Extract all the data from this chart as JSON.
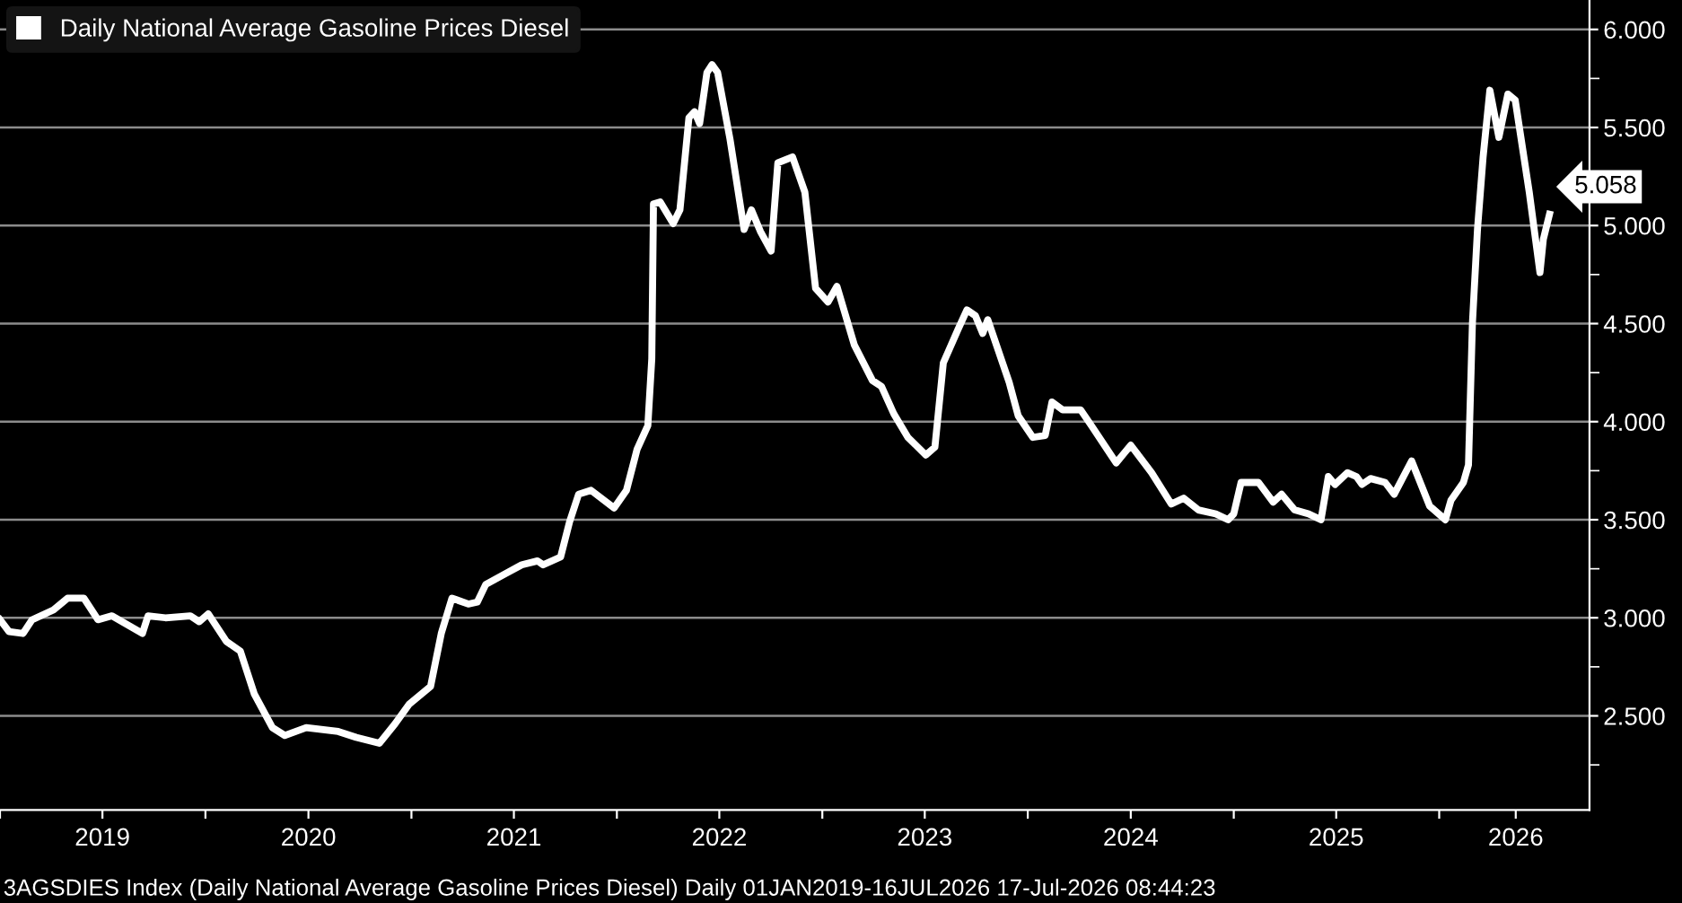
{
  "chart_data": {
    "type": "line",
    "series": [
      {
        "name": "Daily National Average Gasoline Prices Diesel",
        "color": "#ffffff",
        "x": [
          "2019-01-01",
          "2019-01-17",
          "2019-02-11",
          "2019-02-27",
          "2019-04-06",
          "2019-05-01",
          "2019-05-30",
          "2019-06-24",
          "2019-07-19",
          "2019-09-11",
          "2019-09-21",
          "2019-10-22",
          "2019-12-05",
          "2019-12-21",
          "2020-01-06",
          "2020-02-07",
          "2020-03-03",
          "2020-03-28",
          "2020-04-29",
          "2020-05-21",
          "2020-06-28",
          "2020-08-24",
          "2020-09-25",
          "2020-11-05",
          "2020-12-03",
          "2020-12-28",
          "2021-02-04",
          "2021-02-23",
          "2021-03-14",
          "2021-04-12",
          "2021-04-28",
          "2021-05-13",
          "2021-06-14",
          "2021-07-16",
          "2021-08-13",
          "2021-08-23",
          "2021-09-23",
          "2021-10-09",
          "2021-10-25",
          "2021-11-16",
          "2021-12-27",
          "2022-01-18",
          "2022-02-06",
          "2022-02-25",
          "2022-03-04",
          "2022-03-07",
          "2022-03-19",
          "2022-04-11",
          "2022-04-23",
          "2022-05-09",
          "2022-05-19",
          "2022-05-28",
          "2022-06-10",
          "2022-06-19",
          "2022-06-29",
          "2022-07-21",
          "2022-08-15",
          "2022-08-28",
          "2022-09-13",
          "2022-10-02",
          "2022-10-14",
          "2022-11-09",
          "2022-12-01",
          "2022-12-20",
          "2023-01-11",
          "2023-01-27",
          "2023-02-27",
          "2023-03-31",
          "2023-04-16",
          "2023-05-08",
          "2023-06-02",
          "2023-07-04",
          "2023-07-20",
          "2023-08-04",
          "2023-08-30",
          "2023-09-15",
          "2023-09-30",
          "2023-10-13",
          "2023-10-22",
          "2023-11-29",
          "2023-12-15",
          "2024-01-10",
          "2024-02-01",
          "2024-02-13",
          "2024-03-03",
          "2024-04-04",
          "2024-04-23",
          "2024-06-06",
          "2024-07-02",
          "2024-08-08",
          "2024-09-12",
          "2024-10-04",
          "2024-10-30",
          "2024-11-30",
          "2024-12-22",
          "2025-01-01",
          "2025-01-14",
          "2025-02-14",
          "2025-03-12",
          "2025-03-27",
          "2025-04-19",
          "2025-05-14",
          "2025-06-05",
          "2025-06-18",
          "2025-06-30",
          "2025-07-22",
          "2025-08-07",
          "2025-08-17",
          "2025-09-01",
          "2025-09-27",
          "2025-10-13",
          "2025-11-13",
          "2025-12-15",
          "2026-01-12",
          "2026-01-22",
          "2026-02-13",
          "2026-02-22",
          "2026-03-01",
          "2026-03-10",
          "2026-03-20",
          "2026-04-01",
          "2026-04-17",
          "2026-05-03",
          "2026-05-16",
          "2026-06-10",
          "2026-06-29",
          "2026-07-05",
          "2026-07-16"
        ],
        "values": [
          2.99,
          2.93,
          2.92,
          2.99,
          3.04,
          3.1,
          3.1,
          2.99,
          3.01,
          2.92,
          3.01,
          3.0,
          3.01,
          2.98,
          3.02,
          2.88,
          2.83,
          2.61,
          2.44,
          2.4,
          2.44,
          2.42,
          2.39,
          2.36,
          2.46,
          2.56,
          2.65,
          2.92,
          3.1,
          3.07,
          3.08,
          3.17,
          3.22,
          3.27,
          3.29,
          3.27,
          3.31,
          3.49,
          3.63,
          3.65,
          3.56,
          3.65,
          3.86,
          3.98,
          4.32,
          5.11,
          5.12,
          5.01,
          5.08,
          5.55,
          5.58,
          5.52,
          5.78,
          5.82,
          5.78,
          5.44,
          4.98,
          5.08,
          4.97,
          4.87,
          5.32,
          5.35,
          5.17,
          4.68,
          4.61,
          4.69,
          4.39,
          4.21,
          4.18,
          4.04,
          3.92,
          3.83,
          3.87,
          4.3,
          4.47,
          4.57,
          4.54,
          4.45,
          4.52,
          4.2,
          4.03,
          3.92,
          3.93,
          4.1,
          4.06,
          4.06,
          3.98,
          3.79,
          3.88,
          3.74,
          3.58,
          3.61,
          3.55,
          3.53,
          3.5,
          3.53,
          3.69,
          3.69,
          3.59,
          3.63,
          3.55,
          3.53,
          3.5,
          3.72,
          3.68,
          3.74,
          3.72,
          3.68,
          3.71,
          3.69,
          3.63,
          3.8,
          3.57,
          3.5,
          3.6,
          3.69,
          3.78,
          4.5,
          4.98,
          5.35,
          5.69,
          5.45,
          5.67,
          5.64,
          5.17,
          4.76,
          4.93,
          5.058
        ]
      }
    ],
    "xlim": [
      "2019-01-01",
      "2026-09-25"
    ],
    "xticks": [
      {
        "value": "2019-01-01",
        "label": null
      },
      {
        "value": "2019-07-02",
        "label": "2019"
      },
      {
        "value": "2020-01-01",
        "label": null
      },
      {
        "value": "2020-07-02",
        "label": "2020"
      },
      {
        "value": "2021-01-01",
        "label": null
      },
      {
        "value": "2021-07-02",
        "label": "2021"
      },
      {
        "value": "2022-01-01",
        "label": null
      },
      {
        "value": "2022-07-02",
        "label": "2022"
      },
      {
        "value": "2023-01-01",
        "label": null
      },
      {
        "value": "2023-07-02",
        "label": "2023"
      },
      {
        "value": "2024-01-01",
        "label": null
      },
      {
        "value": "2024-07-02",
        "label": "2024"
      },
      {
        "value": "2025-01-01",
        "label": null
      },
      {
        "value": "2025-07-02",
        "label": "2025"
      },
      {
        "value": "2026-01-01",
        "label": null
      },
      {
        "value": "2026-05-17",
        "label": "2026"
      }
    ],
    "ylim": [
      2.02,
      6.15
    ],
    "yticks": [
      {
        "value": 2.25,
        "label": null
      },
      {
        "value": 2.5,
        "label": "2.500"
      },
      {
        "value": 2.75,
        "label": null
      },
      {
        "value": 3.0,
        "label": "3.000"
      },
      {
        "value": 3.25,
        "label": null
      },
      {
        "value": 3.5,
        "label": "3.500"
      },
      {
        "value": 3.75,
        "label": null
      },
      {
        "value": 4.0,
        "label": "4.000"
      },
      {
        "value": 4.25,
        "label": null
      },
      {
        "value": 4.5,
        "label": "4.500"
      },
      {
        "value": 4.75,
        "label": null
      },
      {
        "value": 5.0,
        "label": "5.000"
      },
      {
        "value": 5.25,
        "label": null
      },
      {
        "value": 5.5,
        "label": "5.500"
      },
      {
        "value": 5.75,
        "label": null
      },
      {
        "value": 6.0,
        "label": "6.000"
      }
    ],
    "grid": "y",
    "legend": "top left",
    "marker": "none",
    "line_style": "solid",
    "annotations": [
      {
        "text": "5.058",
        "x": "2026-07-16",
        "y": 5.058
      },
      "3AGSDIES Index (Daily National Average Gasoline Prices Diesel) Daily 01JAN2019-16JUL2026 17-Jul-2026 08:44:23"
    ]
  }
}
